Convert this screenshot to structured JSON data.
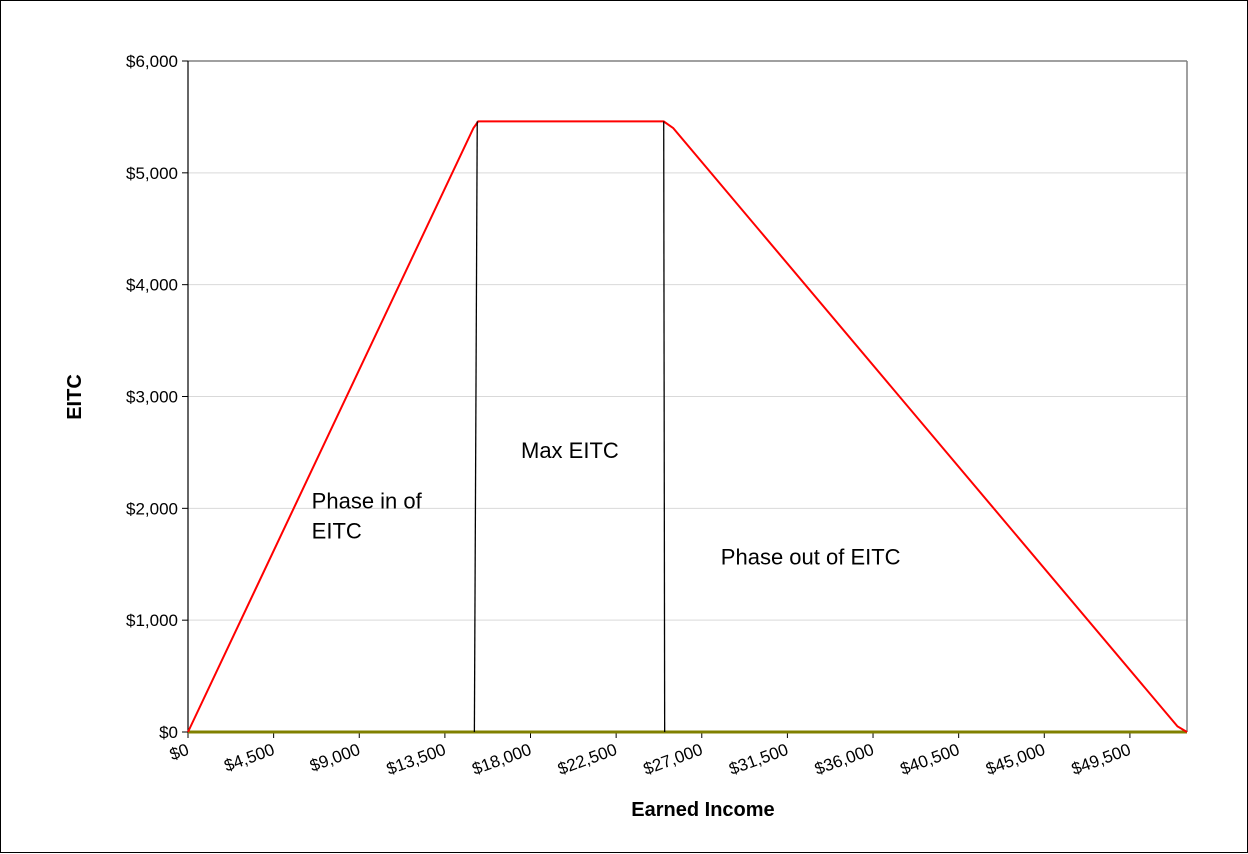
{
  "chart_data": {
    "type": "line",
    "xlabel": "Earned Income",
    "ylabel": "EITC",
    "xlim": [
      0,
      52500
    ],
    "ylim": [
      0,
      6000
    ],
    "grid": "horizontal",
    "legend": "none",
    "x_tick_values": [
      0,
      4500,
      9000,
      13500,
      18000,
      22500,
      27000,
      31500,
      36000,
      40500,
      45000,
      49500
    ],
    "x_tick_labels": [
      "$0",
      "$4,500",
      "$9,000",
      "$13,500",
      "$18,000",
      "$22,500",
      "$27,000",
      "$31,500",
      "$36,000",
      "$40,500",
      "$45,000",
      "$49,500"
    ],
    "y_tick_values": [
      0,
      1000,
      2000,
      3000,
      4000,
      5000,
      6000
    ],
    "y_tick_labels": [
      "$0",
      "$1,000",
      "$2,000",
      "$3,000",
      "$4,000",
      "$5,000",
      "$6,000"
    ],
    "series": [
      {
        "color": "#ff0000",
        "x": [
          0,
          15000,
          15250,
          25000,
          25500,
          52000,
          52500
        ],
        "y": [
          0,
          5400,
          5460,
          5460,
          5400,
          50,
          0
        ]
      },
      {
        "color": "#808000",
        "x": [
          0,
          52500
        ],
        "y": [
          0,
          0
        ]
      }
    ],
    "divider_lines": [
      {
        "x_top": 15200,
        "x_bottom": 15050,
        "y_top": 5460,
        "y_bottom": 0
      },
      {
        "x_top": 25000,
        "x_bottom": 25050,
        "y_top": 5460,
        "y_bottom": 0
      }
    ],
    "annotations": [
      {
        "lines": [
          "Phase in of",
          "EITC"
        ],
        "x": 6500,
        "y": 2000
      },
      {
        "lines": [
          "Max EITC"
        ],
        "x": 17500,
        "y": 2450
      },
      {
        "lines": [
          "Phase out of EITC"
        ],
        "x": 28000,
        "y": 1500
      }
    ]
  }
}
